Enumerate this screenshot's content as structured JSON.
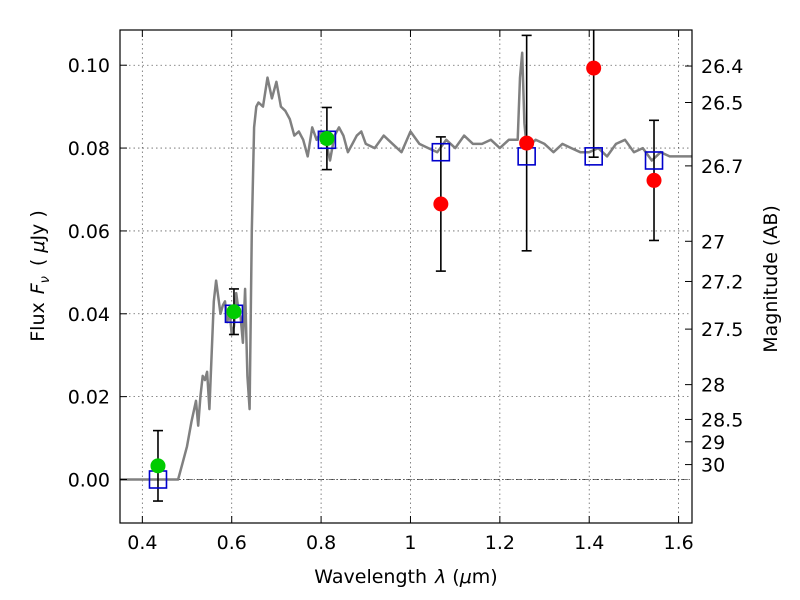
{
  "chart_data": {
    "type": "scatter",
    "xlabel_pre": "Wavelength",
    "xlabel_var": "λ",
    "xlabel_unit_open": "(",
    "xlabel_unit_mu": "μ",
    "xlabel_unit_rest": "m)",
    "ylabel_pre": "Flux",
    "ylabel_var": "F",
    "ylabel_sub": "ν",
    "ylabel_open": "(",
    "ylabel_mu": "μ",
    "ylabel_rest": "Jy )",
    "y2label": "Magnitude (AB)",
    "xlim": [
      0.35,
      1.63
    ],
    "ylim": [
      -0.0105,
      0.1085
    ],
    "grid": true,
    "xticks": [
      0.4,
      0.6,
      0.8,
      1.0,
      1.2,
      1.4,
      1.6
    ],
    "xtick_labels": [
      "0.4",
      "0.6",
      "0.8",
      "1",
      "1.2",
      "1.4",
      "1.6"
    ],
    "yticks": [
      0.0,
      0.02,
      0.04,
      0.06,
      0.08,
      0.1
    ],
    "ytick_labels": [
      "0.00",
      "0.02",
      "0.04",
      "0.06",
      "0.08",
      "0.10"
    ],
    "mag_ticks": [
      {
        "label": "26.4",
        "flux": 0.0998
      },
      {
        "label": "26.5",
        "flux": 0.091
      },
      {
        "label": "26.7",
        "flux": 0.0757
      },
      {
        "label": "27",
        "flux": 0.0575
      },
      {
        "label": "27.2",
        "flux": 0.0478
      },
      {
        "label": "27.5",
        "flux": 0.0363
      },
      {
        "label": "28",
        "flux": 0.0229
      },
      {
        "label": "28.5",
        "flux": 0.0145
      },
      {
        "label": "29",
        "flux": 0.0091
      },
      {
        "label": "30",
        "flux": 0.0036
      }
    ],
    "colors": {
      "template": "#808080",
      "green": "#00cc00",
      "red": "#ff0000",
      "model_box": "#0000cc",
      "errorbar": "#000000"
    },
    "template_spectrum": {
      "name": "",
      "x": [
        0.35,
        0.48,
        0.49,
        0.5,
        0.51,
        0.52,
        0.525,
        0.53,
        0.535,
        0.54,
        0.545,
        0.55,
        0.555,
        0.56,
        0.565,
        0.57,
        0.575,
        0.58,
        0.585,
        0.59,
        0.595,
        0.6,
        0.605,
        0.61,
        0.615,
        0.62,
        0.625,
        0.63,
        0.635,
        0.64,
        0.645,
        0.65,
        0.655,
        0.66,
        0.67,
        0.68,
        0.69,
        0.7,
        0.71,
        0.72,
        0.73,
        0.74,
        0.75,
        0.76,
        0.77,
        0.78,
        0.79,
        0.8,
        0.81,
        0.82,
        0.83,
        0.84,
        0.85,
        0.86,
        0.87,
        0.88,
        0.89,
        0.9,
        0.92,
        0.94,
        0.96,
        0.98,
        1.0,
        1.02,
        1.04,
        1.06,
        1.08,
        1.1,
        1.12,
        1.14,
        1.16,
        1.18,
        1.2,
        1.22,
        1.24,
        1.245,
        1.25,
        1.255,
        1.26,
        1.28,
        1.3,
        1.32,
        1.34,
        1.36,
        1.38,
        1.4,
        1.42,
        1.44,
        1.46,
        1.48,
        1.5,
        1.52,
        1.54,
        1.56,
        1.58,
        1.6,
        1.63
      ],
      "y": [
        0.0,
        0.0,
        0.004,
        0.008,
        0.014,
        0.019,
        0.013,
        0.02,
        0.025,
        0.024,
        0.026,
        0.017,
        0.03,
        0.043,
        0.048,
        0.044,
        0.04,
        0.042,
        0.043,
        0.038,
        0.041,
        0.035,
        0.037,
        0.045,
        0.041,
        0.039,
        0.033,
        0.046,
        0.025,
        0.017,
        0.06,
        0.085,
        0.09,
        0.091,
        0.09,
        0.097,
        0.092,
        0.096,
        0.09,
        0.089,
        0.087,
        0.083,
        0.084,
        0.082,
        0.078,
        0.085,
        0.082,
        0.084,
        0.082,
        0.077,
        0.083,
        0.085,
        0.083,
        0.079,
        0.081,
        0.083,
        0.084,
        0.081,
        0.08,
        0.083,
        0.081,
        0.079,
        0.084,
        0.081,
        0.08,
        0.079,
        0.082,
        0.08,
        0.083,
        0.081,
        0.081,
        0.082,
        0.08,
        0.082,
        0.082,
        0.097,
        0.103,
        0.086,
        0.08,
        0.082,
        0.081,
        0.079,
        0.081,
        0.08,
        0.079,
        0.079,
        0.08,
        0.078,
        0.081,
        0.082,
        0.079,
        0.08,
        0.077,
        0.079,
        0.078,
        0.078,
        0.078
      ]
    },
    "model_points": {
      "name": "",
      "x": [
        0.435,
        0.605,
        0.813,
        1.068,
        1.26,
        1.41,
        1.545
      ],
      "y": [
        0.0,
        0.04,
        0.082,
        0.079,
        0.078,
        0.078,
        0.077
      ]
    },
    "detections": {
      "name": "",
      "x": [
        0.435,
        0.605,
        0.813
      ],
      "y": [
        0.0033,
        0.0405,
        0.0823
      ],
      "yerr": [
        0.0085,
        0.0055,
        0.0075
      ]
    },
    "nondetections": {
      "name": "",
      "x": [
        1.068,
        1.26,
        1.41,
        1.545
      ],
      "y": [
        0.0665,
        0.0812,
        0.0993,
        0.0722
      ],
      "yerr": [
        0.0162,
        0.026,
        0.0215,
        0.0145
      ]
    }
  }
}
